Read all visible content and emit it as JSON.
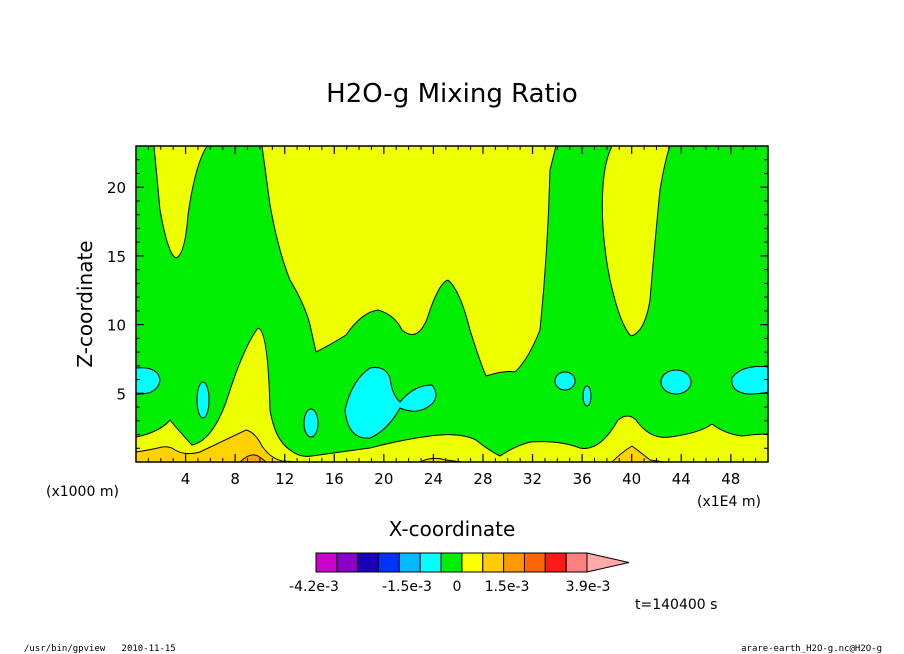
{
  "chart_data": {
    "type": "contour",
    "title": "H2O-g Mixing Ratio",
    "xlabel": "X-coordinate",
    "ylabel": "Z-coordinate",
    "x_unit": "(x1E4 m)",
    "y_unit": "(x1000 m)",
    "xlim": [
      0,
      51
    ],
    "ylim": [
      0,
      23
    ],
    "x_ticks": [
      "4",
      "8",
      "12",
      "16",
      "20",
      "24",
      "28",
      "32",
      "36",
      "40",
      "44",
      "48"
    ],
    "x_tick_values": [
      4,
      8,
      12,
      16,
      20,
      24,
      28,
      32,
      36,
      40,
      44,
      48
    ],
    "y_ticks": [
      "5",
      "10",
      "15",
      "20"
    ],
    "y_tick_values": [
      5,
      10,
      15,
      20
    ],
    "time_label": "t=140400 s",
    "colorbar": {
      "labels": [
        "-4.2e-3",
        "-1.5e-3",
        "0",
        "1.5e-3",
        "3.9e-3"
      ],
      "colors": [
        "#cc00cc",
        "#8a00c8",
        "#1a00b8",
        "#0033ff",
        "#00bbff",
        "#00ffff",
        "#00ee00",
        "#ffff00",
        "#ffcc00",
        "#ff9900",
        "#ff6600",
        "#ff1a1a",
        "#ff7f7f",
        "#ffaaaa"
      ]
    },
    "fills": {
      "yellow": "#eeff00",
      "green": "#00ee00",
      "cyan": "#00ffff",
      "gold": "#ffd200",
      "orange": "#ffa500"
    }
  },
  "footer": {
    "left": "/usr/bin/gpview   2010-11-15",
    "right": "arare-earth_H2O-g.nc@H2O-g"
  }
}
